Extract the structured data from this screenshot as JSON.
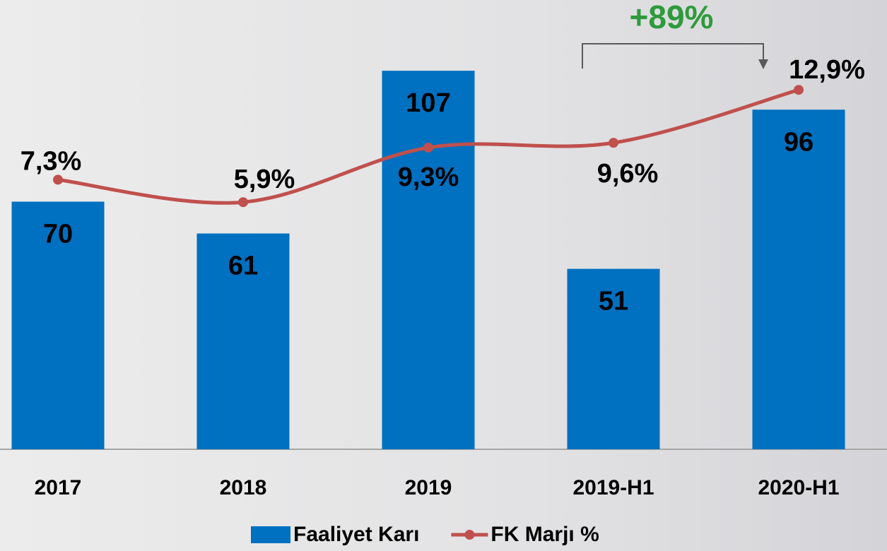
{
  "chart_data": {
    "type": "bar",
    "categories": [
      "2017",
      "2018",
      "2019",
      "2019-H1",
      "2020-H1"
    ],
    "series": [
      {
        "name": "Faaliyet Karı",
        "type": "bar",
        "color": "#0070c0",
        "values": [
          70,
          61,
          107,
          51,
          96
        ]
      },
      {
        "name": "FK Marjı %",
        "type": "line",
        "axis": "y2",
        "color": "#c0504d",
        "values": [
          7.3,
          5.9,
          9.3,
          9.6,
          12.9
        ],
        "value_labels": [
          "7,3%",
          "5,9%",
          "9,3%",
          "9,6%",
          "12,9%"
        ]
      }
    ],
    "ylim": [
      0,
      127
    ],
    "y2lim": [
      -9.5,
      18.5
    ],
    "annotation": "+89%",
    "legend": "bottom"
  }
}
